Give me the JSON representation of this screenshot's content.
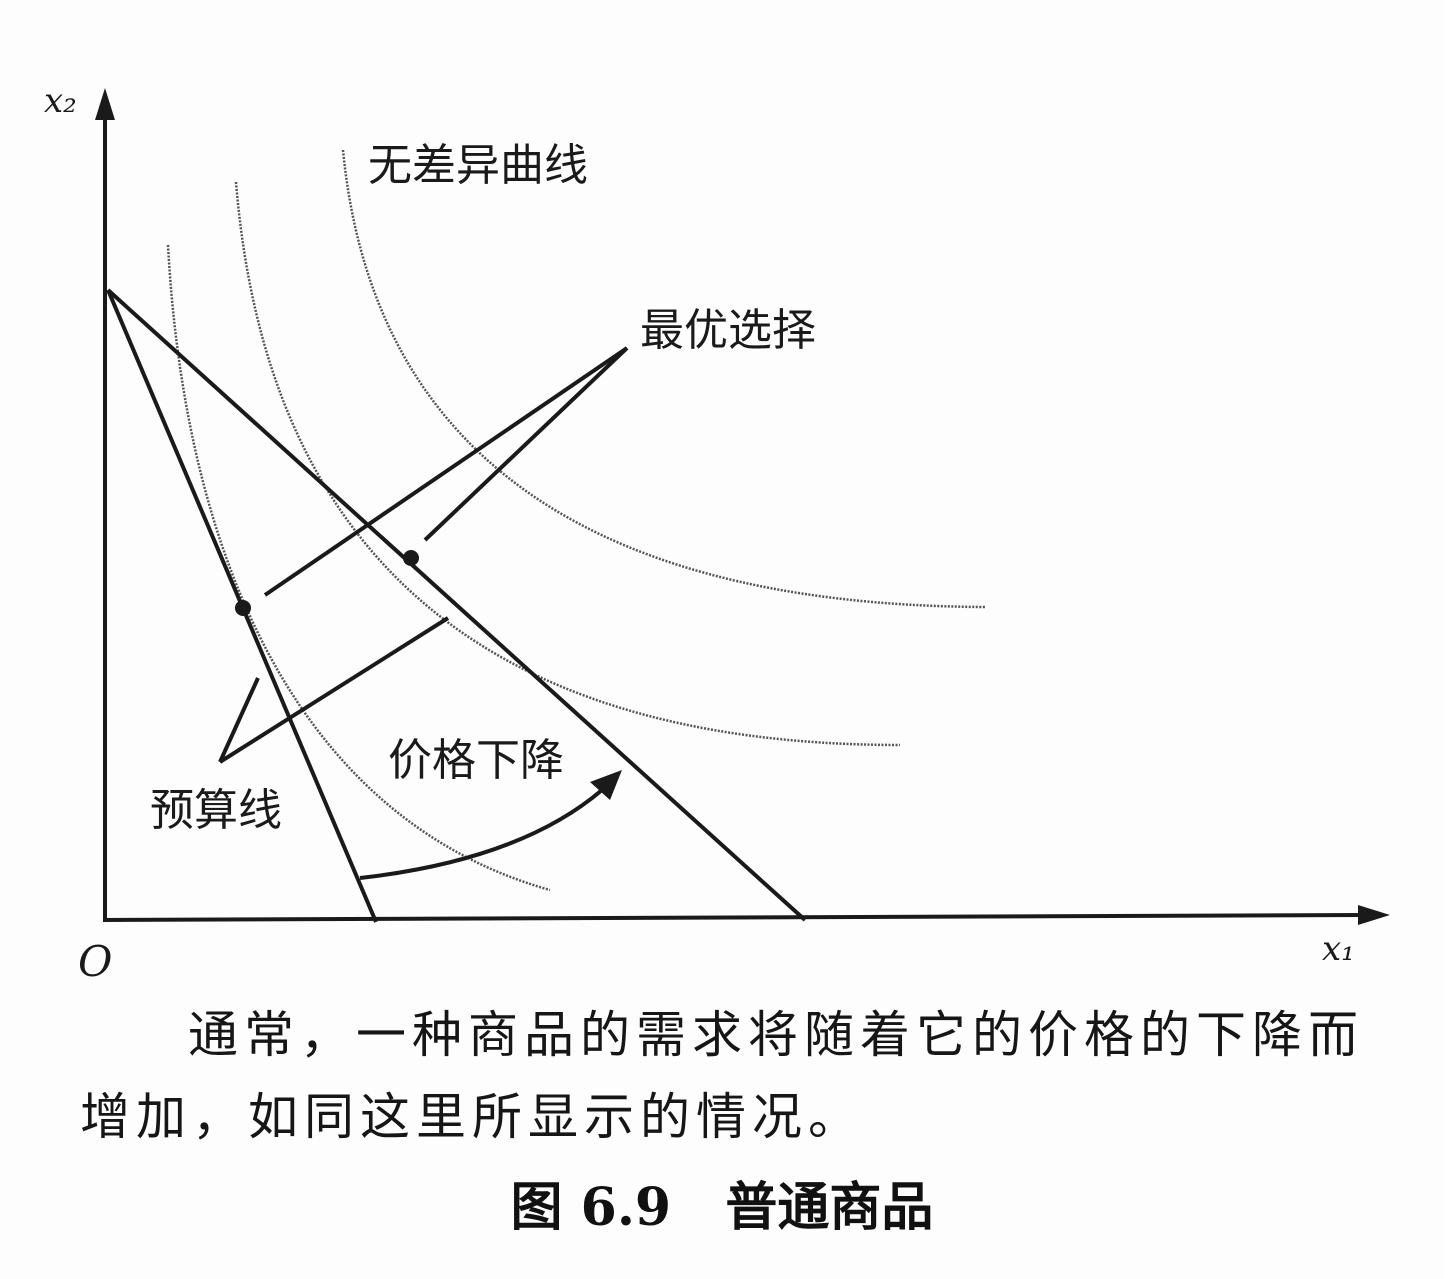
{
  "diagram": {
    "axes": {
      "y_label": "x₂",
      "x_label": "x₁",
      "origin_label": "O"
    },
    "labels": {
      "indifference_curves": "无差异曲线",
      "optimal_choice": "最优选择",
      "price_decrease": "价格下降",
      "budget_line": "预算线"
    },
    "colors": {
      "ink": "#1a1a1a",
      "curve": "#555555",
      "background": "#fdfdfd"
    }
  },
  "caption": {
    "line_1": "通常，一种商品的需求将随着它的价格的下降而",
    "line_2": "增加，如同这里所显示的情况。"
  },
  "figure_title": "图 6.9   普通商品"
}
